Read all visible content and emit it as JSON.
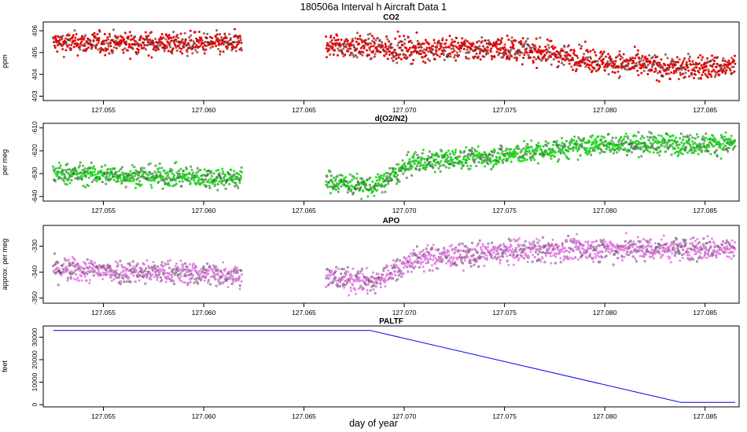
{
  "figure": {
    "title": "180506a   Interval h Aircraft Data 1",
    "xlabel": "day of year"
  },
  "colors": {
    "co2": "#ee0000",
    "o2n2": "#22dd22",
    "apo": "#ee82ee",
    "paltf": "#0000ee",
    "axis": "#000000"
  },
  "chart_data": [
    {
      "type": "scatter",
      "title": "CO2",
      "ylabel": "ppm",
      "xlim": [
        127.052,
        127.0867
      ],
      "ylim": [
        402.8,
        406.4
      ],
      "yticks": [
        403,
        404,
        405,
        406
      ],
      "xticks": [
        127.055,
        127.06,
        127.065,
        127.07,
        127.075,
        127.08,
        127.085
      ],
      "xtick_labels": [
        "127.055",
        "127.060",
        "127.065",
        "127.070",
        "127.075",
        "127.080",
        "127.085"
      ],
      "series": [
        {
          "name": "CO2",
          "segments": [
            {
              "x0": 127.0525,
              "x1": 127.0619,
              "trend": [
                [
                  127.0525,
                  405.45
                ],
                [
                  127.0619,
                  405.4
                ]
              ],
              "spread": 0.55
            },
            {
              "x0": 127.0661,
              "x1": 127.0865,
              "trend": [
                [
                  127.0661,
                  405.35
                ],
                [
                  127.07,
                  405.15
                ],
                [
                  127.075,
                  405.2
                ],
                [
                  127.0775,
                  404.95
                ],
                [
                  127.08,
                  404.55
                ],
                [
                  127.0835,
                  404.3
                ],
                [
                  127.0865,
                  404.35
                ]
              ],
              "spread": 0.6
            }
          ]
        }
      ]
    },
    {
      "type": "scatter",
      "title": "d(O2/N2)",
      "ylabel": "per meg",
      "xlim": [
        127.052,
        127.0867
      ],
      "ylim": [
        -642,
        -608
      ],
      "yticks": [
        -640,
        -630,
        -620,
        -610
      ],
      "xticks": [
        127.055,
        127.06,
        127.065,
        127.07,
        127.075,
        127.08,
        127.085
      ],
      "xtick_labels": [
        "127.055",
        "127.060",
        "127.065",
        "127.070",
        "127.075",
        "127.080",
        "127.085"
      ],
      "series": [
        {
          "name": "d(O2/N2)",
          "segments": [
            {
              "x0": 127.0525,
              "x1": 127.0619,
              "trend": [
                [
                  127.0525,
                  -630
                ],
                [
                  127.0619,
                  -632
                ]
              ],
              "spread": 5
            },
            {
              "x0": 127.0661,
              "x1": 127.0865,
              "trend": [
                [
                  127.0661,
                  -633
                ],
                [
                  127.0685,
                  -636
                ],
                [
                  127.0705,
                  -625
                ],
                [
                  127.075,
                  -622
                ],
                [
                  127.08,
                  -617
                ],
                [
                  127.0865,
                  -617
                ]
              ],
              "spread": 5
            }
          ]
        }
      ]
    },
    {
      "type": "scatter",
      "title": "APO",
      "ylabel": "approx. per meg",
      "xlim": [
        127.052,
        127.0867
      ],
      "ylim": [
        -352,
        -322
      ],
      "yticks": [
        -350,
        -340,
        -330
      ],
      "xticks": [
        127.055,
        127.06,
        127.065,
        127.07,
        127.075,
        127.08,
        127.085
      ],
      "xtick_labels": [
        "127.055",
        "127.060",
        "127.065",
        "127.070",
        "127.075",
        "127.080",
        "127.085"
      ],
      "series": [
        {
          "name": "APO",
          "segments": [
            {
              "x0": 127.0525,
              "x1": 127.0619,
              "trend": [
                [
                  127.0525,
                  -339
                ],
                [
                  127.0619,
                  -341
                ]
              ],
              "spread": 5
            },
            {
              "x0": 127.0661,
              "x1": 127.0865,
              "trend": [
                [
                  127.0661,
                  -342
                ],
                [
                  127.0685,
                  -344
                ],
                [
                  127.0705,
                  -335
                ],
                [
                  127.0755,
                  -332
                ],
                [
                  127.08,
                  -331
                ],
                [
                  127.0865,
                  -331
                ]
              ],
              "spread": 5
            }
          ]
        }
      ]
    },
    {
      "type": "line",
      "title": "PALTF",
      "ylabel": "feet",
      "xlim": [
        127.052,
        127.0867
      ],
      "ylim": [
        -1000,
        35000
      ],
      "yticks": [
        0,
        10000,
        20000,
        30000
      ],
      "xticks": [
        127.055,
        127.06,
        127.065,
        127.07,
        127.075,
        127.08,
        127.085
      ],
      "xtick_labels": [
        "127.055",
        "127.060",
        "127.065",
        "127.070",
        "127.075",
        "127.080",
        "127.085"
      ],
      "series": [
        {
          "name": "PALTF",
          "x": [
            127.0525,
            127.0683,
            127.0838,
            127.0865
          ],
          "y": [
            33000,
            33000,
            1000,
            1000
          ]
        }
      ]
    }
  ]
}
